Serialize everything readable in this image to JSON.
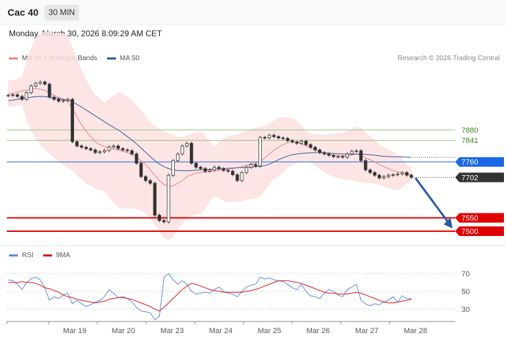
{
  "header": {
    "symbol": "Cac 40",
    "interval": "30 MIN"
  },
  "datetime": "Monday, March 30, 2026 8:09:29 AM CET",
  "legend": {
    "bollinger": "MA 20 + Bollinger Bands",
    "ma50": "MA 50",
    "credit": "Research © 2026 Trading Central"
  },
  "rsi_legend": {
    "rsi": "RSI",
    "ma9": "9MA"
  },
  "colors": {
    "bollinger": "#f08080",
    "band_fill": "#fde0e0",
    "ma50": "#2c5aa0",
    "resistance": "#8fc17a",
    "pivot": "#4a7fe0",
    "support": "#e00000",
    "price": "#333333",
    "rsi": "#5b86e5",
    "rsi_ma": "#e01010",
    "arrow": "#2c5aa0",
    "candle": "#333333"
  },
  "chart_data": [
    {
      "type": "line",
      "title": "Cac 40",
      "x_labels": [
        "Mar 19",
        "Mar 20",
        "Mar 23",
        "Mar 24",
        "Mar 25",
        "Mar 26",
        "Mar 27",
        "Mar 28"
      ],
      "levels": [
        {
          "value": 7880,
          "label": "7880",
          "kind": "resistance"
        },
        {
          "value": 7841,
          "label": "7841",
          "kind": "resistance"
        },
        {
          "value": 7760,
          "label": "7760",
          "kind": "pivot"
        },
        {
          "value": 7702,
          "label": "7702",
          "kind": "price"
        },
        {
          "value": 7550,
          "label": "7550",
          "kind": "support"
        },
        {
          "value": 7500,
          "label": "7500",
          "kind": "support"
        }
      ],
      "price_close": [
        8010,
        8012,
        8006,
        7995,
        8020,
        8045,
        8055,
        8060,
        8052,
        8003,
        7995,
        7988,
        7991,
        7995,
        7836,
        7820,
        7815,
        7810,
        7805,
        7795,
        7798,
        7803,
        7816,
        7820,
        7810,
        7805,
        7802,
        7790,
        7755,
        7705,
        7690,
        7680,
        7560,
        7540,
        7535,
        7710,
        7765,
        7790,
        7820,
        7830,
        7755,
        7740,
        7735,
        7725,
        7730,
        7740,
        7735,
        7728,
        7725,
        7712,
        7690,
        7720,
        7740,
        7750,
        7745,
        7852,
        7850,
        7860,
        7855,
        7850,
        7848,
        7840,
        7835,
        7830,
        7838,
        7825,
        7815,
        7805,
        7795,
        7790,
        7785,
        7780,
        7780,
        7778,
        7790,
        7800,
        7802,
        7765,
        7730,
        7720,
        7710,
        7700,
        7705,
        7710,
        7712,
        7715,
        7720,
        7710,
        7702
      ],
      "ma20": [
        8015,
        8018,
        8022,
        8026,
        8030,
        8034,
        8035,
        8033,
        8028,
        8020,
        8010,
        8003,
        7995,
        7985,
        7960,
        7930,
        7900,
        7875,
        7855,
        7835,
        7825,
        7818,
        7812,
        7808,
        7805,
        7800,
        7795,
        7788,
        7778,
        7765,
        7750,
        7730,
        7710,
        7690,
        7675,
        7668,
        7670,
        7680,
        7690,
        7705,
        7712,
        7718,
        7720,
        7722,
        7724,
        7726,
        7728,
        7730,
        7732,
        7735,
        7738,
        7742,
        7748,
        7752,
        7756,
        7760,
        7775,
        7790,
        7805,
        7815,
        7825,
        7832,
        7836,
        7834,
        7828,
        7820,
        7812,
        7805,
        7798,
        7792,
        7788,
        7785,
        7784,
        7783,
        7784,
        7787,
        7790,
        7785,
        7775,
        7768,
        7760,
        7750,
        7742,
        7735,
        7728,
        7722,
        7718,
        7714,
        7712
      ],
      "ma50": [
        7990,
        7992,
        7995,
        7998,
        8000,
        8003,
        8005,
        8006,
        8005,
        8003,
        8000,
        7998,
        7995,
        7992,
        7985,
        7976,
        7966,
        7955,
        7944,
        7933,
        7922,
        7911,
        7900,
        7890,
        7880,
        7868,
        7855,
        7842,
        7828,
        7812,
        7796,
        7780,
        7765,
        7752,
        7742,
        7735,
        7730,
        7728,
        7727,
        7727,
        7728,
        7729,
        7730,
        7731,
        7732,
        7733,
        7734,
        7735,
        7736,
        7737,
        7738,
        7739,
        7740,
        7741,
        7742,
        7743,
        7746,
        7752,
        7760,
        7768,
        7776,
        7782,
        7787,
        7790,
        7792,
        7793,
        7794,
        7795,
        7795,
        7794,
        7793,
        7792,
        7791,
        7790,
        7790,
        7790,
        7790,
        7789,
        7788,
        7787,
        7785,
        7783,
        7781,
        7780,
        7779,
        7779,
        7779,
        7778,
        7777
      ],
      "forecast_target": 7505
    },
    {
      "type": "line",
      "title": "RSI",
      "yticks": [
        70,
        50,
        30
      ],
      "series": [
        {
          "name": "RSI",
          "values": [
            63,
            62,
            58,
            52,
            60,
            64,
            66,
            63,
            54,
            40,
            44,
            42,
            46,
            48,
            36,
            40,
            36,
            33,
            35,
            38,
            40,
            44,
            52,
            48,
            43,
            44,
            42,
            38,
            32,
            28,
            27,
            26,
            18,
            22,
            66,
            70,
            63,
            58,
            62,
            58,
            50,
            47,
            48,
            49,
            48,
            52,
            55,
            50,
            48,
            47,
            44,
            50,
            55,
            57,
            58,
            66,
            64,
            65,
            63,
            62,
            61,
            58,
            54,
            52,
            58,
            50,
            45,
            44,
            42,
            48,
            52,
            50,
            46,
            44,
            52,
            55,
            58,
            40,
            36,
            34,
            36,
            35,
            38,
            40,
            44,
            38,
            45,
            42,
            42
          ]
        },
        {
          "name": "9MA",
          "values": [
            60,
            60,
            60,
            61,
            60,
            60,
            59,
            57,
            54,
            53,
            51,
            49,
            46,
            44,
            43,
            41,
            40,
            39,
            38,
            37,
            38,
            39,
            41,
            42,
            43,
            43,
            42,
            41,
            39,
            37,
            35,
            33,
            30,
            28,
            32,
            37,
            42,
            47,
            52,
            56,
            59,
            58,
            56,
            54,
            52,
            51,
            50,
            49,
            49,
            49,
            49,
            49,
            50,
            51,
            52,
            54,
            56,
            58,
            60,
            62,
            62,
            62,
            61,
            60,
            59,
            57,
            55,
            53,
            51,
            49,
            48,
            48,
            47,
            47,
            47,
            48,
            49,
            48,
            46,
            44,
            42,
            40,
            38,
            37,
            37,
            38,
            39,
            40,
            41
          ]
        }
      ]
    }
  ]
}
